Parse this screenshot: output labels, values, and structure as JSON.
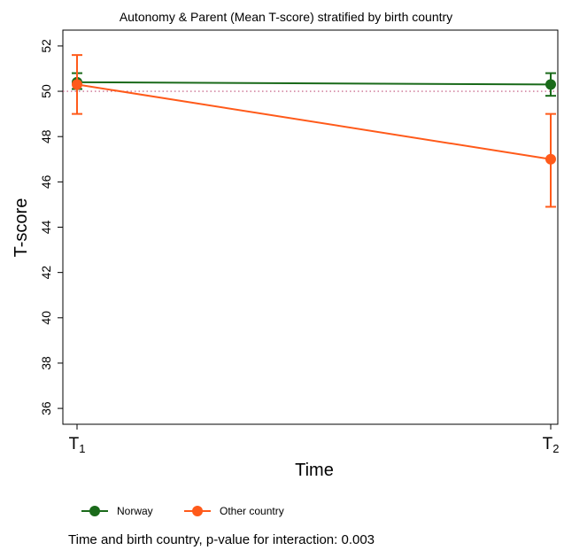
{
  "chart_data": {
    "type": "line",
    "title": "Autonomy & Parent (Mean T-score) stratified by birth country",
    "xlabel": "Time",
    "ylabel": "T-score",
    "categories": [
      {
        "base": "T",
        "sub": "1"
      },
      {
        "base": "T",
        "sub": "2"
      }
    ],
    "ylim": [
      35.3,
      52.7
    ],
    "yticks": [
      36,
      38,
      40,
      42,
      44,
      46,
      48,
      50,
      52
    ],
    "reference_line": 50,
    "grid": false,
    "legend_position": "bottom",
    "series": [
      {
        "name": "Norway",
        "color": "#1a6a1a",
        "values": [
          50.4,
          50.3
        ],
        "error_low": [
          50.1,
          49.8
        ],
        "error_high": [
          50.8,
          50.8
        ]
      },
      {
        "name": "Other country",
        "color": "#ff5a1a",
        "values": [
          50.3,
          47.0
        ],
        "error_low": [
          49.0,
          44.9
        ],
        "error_high": [
          51.6,
          49.0
        ]
      }
    ]
  },
  "footnote": "Time and birth country, p-value for interaction: 0.003",
  "reference_line_color": "#c0507a"
}
